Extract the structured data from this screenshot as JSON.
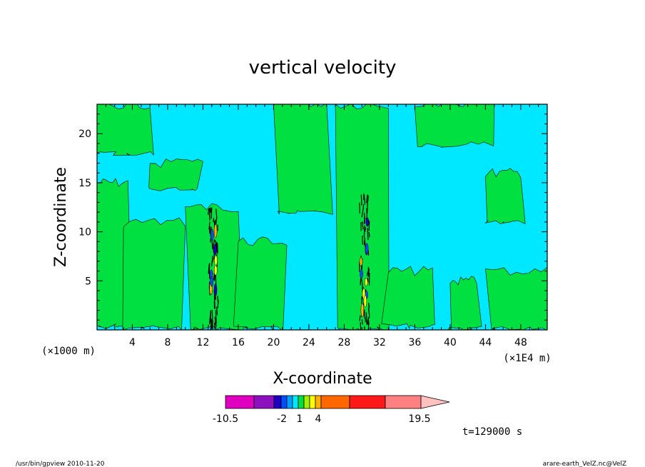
{
  "chart_data": {
    "type": "heatmap",
    "title": "vertical velocity",
    "xlabel": "X-coordinate",
    "ylabel": "Z-coordinate",
    "x_unit_left": "(×1000 m)",
    "x_unit_right": "(×1E4 m)",
    "xlim": [
      0,
      51
    ],
    "ylim": [
      0,
      23
    ],
    "x_ticks": [
      4,
      8,
      12,
      16,
      20,
      24,
      28,
      32,
      36,
      40,
      44,
      48
    ],
    "y_ticks": [
      5,
      10,
      15,
      20
    ],
    "time_label": "t=129000 s",
    "colorbar": {
      "colors": [
        "#e000c0",
        "#8c10c0",
        "#2000c0",
        "#0050ff",
        "#00a0ff",
        "#00e8ff",
        "#00e040",
        "#a0f000",
        "#ffff00",
        "#ffb000",
        "#ff6800",
        "#ff1818",
        "#ff8080",
        "#ffc0c0"
      ],
      "labels": [
        "-10.5",
        "-2",
        "1",
        "4",
        "19.5"
      ]
    },
    "green_regions": [
      {
        "x": [
          0,
          3.5
        ],
        "z": [
          0.5,
          15
        ],
        "kind": "band"
      },
      {
        "x": [
          3,
          10
        ],
        "z": [
          0.3,
          11
        ],
        "kind": "band"
      },
      {
        "x": [
          10,
          16
        ],
        "z": [
          0.2,
          12.5
        ],
        "kind": "band"
      },
      {
        "x": [
          16,
          21.5
        ],
        "z": [
          0.2,
          9
        ],
        "kind": "band"
      },
      {
        "x": [
          20,
          26
        ],
        "z": [
          12,
          23
        ],
        "kind": "band"
      },
      {
        "x": [
          27,
          33
        ],
        "z": [
          0.2,
          23
        ],
        "kind": "band"
      },
      {
        "x": [
          33,
          38
        ],
        "z": [
          0.5,
          6
        ],
        "kind": "band"
      },
      {
        "x": [
          40,
          43
        ],
        "z": [
          0.2,
          5
        ],
        "kind": "band"
      },
      {
        "x": [
          44,
          51
        ],
        "z": [
          0.2,
          6
        ],
        "kind": "band"
      },
      {
        "x": [
          44,
          48
        ],
        "z": [
          11,
          16
        ],
        "kind": "band"
      },
      {
        "x": [
          0,
          6
        ],
        "z": [
          18,
          23
        ],
        "kind": "band"
      },
      {
        "x": [
          6,
          12
        ],
        "z": [
          14.5,
          17
        ],
        "kind": "band"
      },
      {
        "x": [
          36,
          45
        ],
        "z": [
          19,
          23
        ],
        "kind": "band"
      }
    ],
    "convection_columns": [
      {
        "x": 13.2,
        "z": [
          0.5,
          12.5
        ]
      },
      {
        "x": 30.3,
        "z": [
          0.2,
          14
        ]
      }
    ]
  },
  "footer": {
    "left": "/usr/bin/gpview   2010-11-20",
    "right": "arare-earth_VelZ.nc@VelZ"
  }
}
